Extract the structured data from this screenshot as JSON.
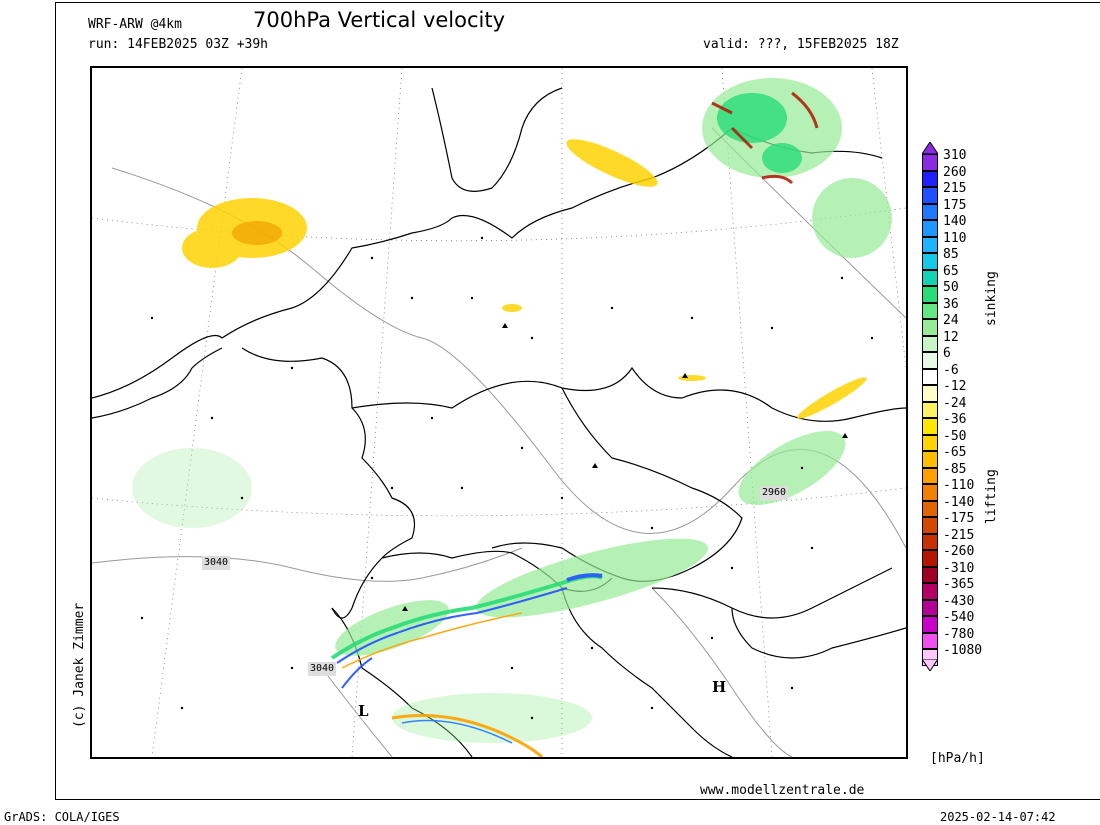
{
  "header": {
    "model": "WRF-ARW @4km",
    "title": "700hPa Vertical velocity",
    "run": "run: 14FEB2025 03Z +39h",
    "valid": "valid: ???, 15FEB2025 18Z"
  },
  "credit": "(c) Janek Zimmer",
  "website": "www.modellzentrale.de",
  "footer": {
    "left": "GrADS: COLA/IGES",
    "right": "2025-02-14-07:42"
  },
  "map": {
    "contour_labels": [
      "3040",
      "3040",
      "2960"
    ],
    "pressure_centers": [
      "H",
      "L"
    ]
  },
  "legend": {
    "labels": [
      "310",
      "260",
      "215",
      "175",
      "140",
      "110",
      "85",
      "65",
      "50",
      "36",
      "24",
      "12",
      "6",
      "-6",
      "-12",
      "-24",
      "-36",
      "-50",
      "-65",
      "-85",
      "-110",
      "-140",
      "-175",
      "-215",
      "-260",
      "-310",
      "-365",
      "-430",
      "-540",
      "-780",
      "-1080"
    ],
    "colors": [
      "#8a2be2",
      "#2020ff",
      "#1e50ff",
      "#1e78ff",
      "#1e96ff",
      "#1eb4ff",
      "#14c8e6",
      "#14d2b4",
      "#28dc78",
      "#64e682",
      "#96eb96",
      "#c8f5c8",
      "#e6fae6",
      "#ffffff",
      "#ffffc8",
      "#fff064",
      "#ffe600",
      "#ffd200",
      "#ffbe00",
      "#ffa000",
      "#f08200",
      "#e06400",
      "#d24a00",
      "#c83200",
      "#b41400",
      "#a00028",
      "#b40064",
      "#b40096",
      "#c800c8",
      "#f050f0",
      "#ffc8ff"
    ],
    "top_arrow_color": "#8a2be2",
    "bottom_arrow_color": "#ffc8ff",
    "sinking_label": "sinking",
    "lifting_label": "lifting",
    "unit": "[hPa/h]"
  }
}
